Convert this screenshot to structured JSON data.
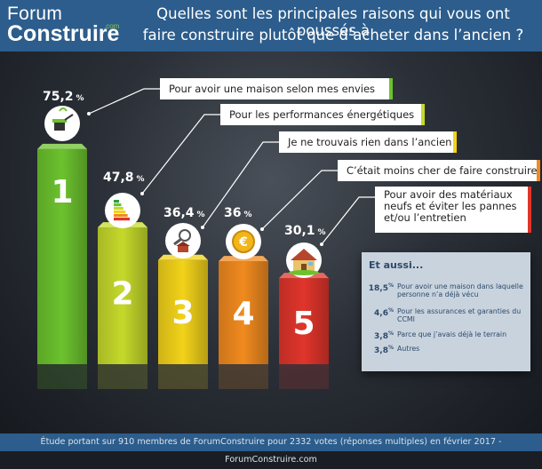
{
  "header": {
    "logo_top": "Forum",
    "logo_bottom": "Construire",
    "logo_com": ".com",
    "title_line1": "Quelles sont les principales raisons qui vous ont poussés à",
    "title_line2": "faire construire plutôt que d’acheter dans l’ancien ?"
  },
  "chart_data": {
    "type": "bar",
    "title": "Quelles sont les principales raisons qui vous ont poussés à faire construire plutôt que d’acheter dans l’ancien ?",
    "categories": [
      "1",
      "2",
      "3",
      "4",
      "5"
    ],
    "values": [
      75.2,
      47.8,
      36.4,
      36,
      30.1
    ],
    "value_labels": [
      "75,2",
      "47,8",
      "36,4",
      "36",
      "30,1"
    ],
    "value_unit": "%",
    "reasons": [
      [
        "Pour avoir une maison selon mes envies"
      ],
      [
        "Pour les performances énergétiques"
      ],
      [
        "Je ne trouvais rien dans l’ancien"
      ],
      [
        "C’était moins cher de faire construire"
      ],
      [
        "Pour avoir des matériaux",
        "neufs et éviter les pannes",
        "et/ou l’entretien"
      ]
    ],
    "colors": [
      "#6cc22e",
      "#c5d92b",
      "#f2d21a",
      "#f08a1f",
      "#e0352b"
    ],
    "icons": [
      "watering-can-icon",
      "energy-label-icon",
      "magnifier-house-icon",
      "euro-coin-icon",
      "house-icon"
    ],
    "ylim": [
      0,
      80
    ]
  },
  "aussi": {
    "title": "Et aussi...",
    "items": [
      {
        "value": "18,5",
        "unit": "%",
        "label": "Pour avoir une maison dans laquelle personne n’a déjà vécu"
      },
      {
        "value": "4,6",
        "unit": "%",
        "label": "Pour les assurances et garanties du CCMI"
      },
      {
        "value": "3,8",
        "unit": "%",
        "label": "Parce que j’avais déjà le terrain"
      },
      {
        "value": "3,8",
        "unit": "%",
        "label": "Autres"
      }
    ]
  },
  "footer": {
    "note": "Étude portant sur 910 membres de ForumConstruire pour 2332 votes (réponses multiples) en février 2017 - ForumConstruire.com"
  }
}
